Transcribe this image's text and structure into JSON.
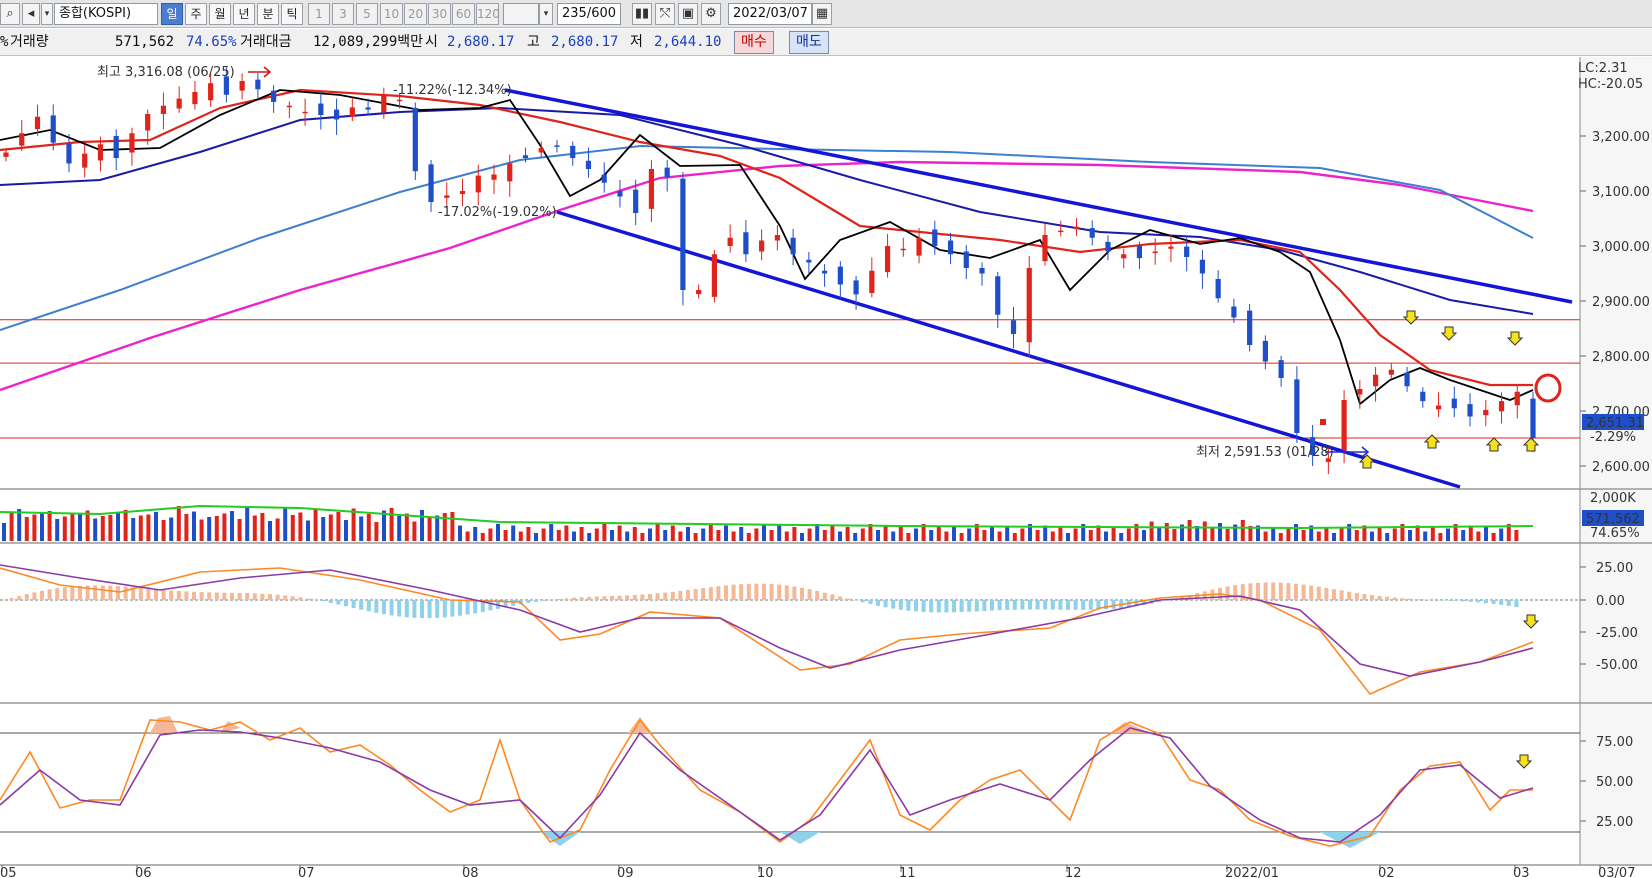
{
  "toolbar": {
    "symbol": "종합(KOSPI)",
    "period_buttons": [
      "일",
      "주",
      "월",
      "년",
      "분",
      "틱"
    ],
    "selected_period": "일",
    "interval_buttons": [
      "1",
      "3",
      "5",
      "10",
      "20",
      "30",
      "60",
      "120"
    ],
    "count": "235",
    "count_total": "/600",
    "date": "2022/03/07"
  },
  "quote": {
    "volume_label": "거래량",
    "volume_value": "571,562",
    "volume_pct": "74.65%",
    "amount_label": "거래대금",
    "amount_value": "12,089,299백만",
    "open_label": "시",
    "open_value": "2,680.17",
    "high_label": "고",
    "high_value": "2,680.17",
    "low_label": "저",
    "low_value": "2,644.10",
    "buy_label": "매수",
    "sell_label": "매도",
    "left_glyph": "%"
  },
  "colors": {
    "up": "#e0241b",
    "down": "#1f4fc8",
    "ma5": "#000000",
    "ma20": "#e0241b",
    "ma60": "#1a1aa8",
    "ma120": "#3f7fcf",
    "ma240": "#ee22cc",
    "trend": "#1515d8"
  },
  "price_axis": [
    "3,200.00",
    "3,100.00",
    "3,000.00",
    "2,900.00",
    "2,800.00",
    "2,700.00",
    "2,600.00"
  ],
  "price_current": "2,651.31",
  "price_change": "-2.29%",
  "lc_label": "LC:2.31",
  "hc_label": "HC:-20.05",
  "annotations": {
    "high": "최고 3,316.08 (06/25)",
    "low": "최저 2,591.53 (01/28)",
    "pct1": "-11.22%(-12.34%)",
    "pct2": "-17.02%(-19.02%)"
  },
  "volume_axis": [
    "2,000K"
  ],
  "volume_current": "571,562",
  "volume_pct": "74.65%",
  "macd_axis": [
    "25.00",
    "0.00",
    "-25.00",
    "-50.00"
  ],
  "stoch_axis": [
    "75.00",
    "50.00",
    "25.00"
  ],
  "date_axis": [
    "05",
    "06",
    "07",
    "08",
    "09",
    "10",
    "11",
    "12",
    "2022/01",
    "02",
    "03",
    "03/07"
  ],
  "chart_data": {
    "type": "candlestick",
    "series": "KOSPI daily",
    "ylim": [
      2560,
      3340
    ],
    "close": [
      3170,
      3205,
      3235,
      3188,
      3150,
      3168,
      3185,
      3160,
      3205,
      3240,
      3255,
      3268,
      3280,
      3296,
      3275,
      3300,
      3285,
      3262,
      3255,
      3244,
      3238,
      3230,
      3252,
      3248,
      3274,
      3266,
      3136,
      3080,
      3092,
      3100,
      3128,
      3130,
      3150,
      3160,
      3178,
      3182,
      3160,
      3140,
      3115,
      3090,
      3060,
      3140,
      3125,
      2920,
      2920,
      2985,
      3015,
      2985,
      3010,
      3020,
      2985,
      2970,
      2950,
      2930,
      2912,
      2955,
      3000,
      2995,
      3015,
      3000,
      2985,
      2960,
      2950,
      2875,
      2840,
      2960,
      3020,
      3028,
      3035,
      3015,
      2990,
      2985,
      2978,
      2990,
      2999,
      2980,
      2950,
      2905,
      2870,
      2820,
      2790,
      2760,
      2660,
      2620,
      2614,
      2720,
      2740,
      2766,
      2775,
      2745,
      2718,
      2710,
      2705,
      2690,
      2702,
      2718,
      2735,
      2651
    ]
  }
}
